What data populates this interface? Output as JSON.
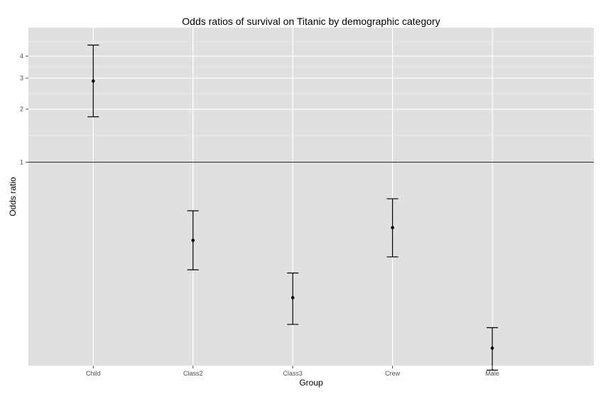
{
  "chart_data": {
    "type": "errorbar",
    "title": "Odds ratios of survival on Titanic by demographic category",
    "xlabel": "Group",
    "ylabel": "Odds ratio",
    "y_scale": "log",
    "ylim": [
      0.07,
      5.8
    ],
    "y_ticks": [
      1,
      2,
      3,
      4
    ],
    "reference_line": 1,
    "grid": true,
    "categories": [
      "Child",
      "Class2",
      "Class3",
      "Crew",
      "Male"
    ],
    "points": [
      {
        "group": "Child",
        "estimate": 2.89,
        "lower": 1.81,
        "upper": 4.62
      },
      {
        "group": "Class2",
        "estimate": 0.36,
        "lower": 0.245,
        "upper": 0.53
      },
      {
        "group": "Class3",
        "estimate": 0.17,
        "lower": 0.12,
        "upper": 0.235
      },
      {
        "group": "Crew",
        "estimate": 0.425,
        "lower": 0.29,
        "upper": 0.62
      },
      {
        "group": "Male",
        "estimate": 0.088,
        "lower": 0.066,
        "upper": 0.115
      }
    ],
    "colors": {
      "panel_bg": "#e0e0e0",
      "grid": "#ffffff",
      "marks": "#000000",
      "reference_line": "#333333"
    }
  }
}
